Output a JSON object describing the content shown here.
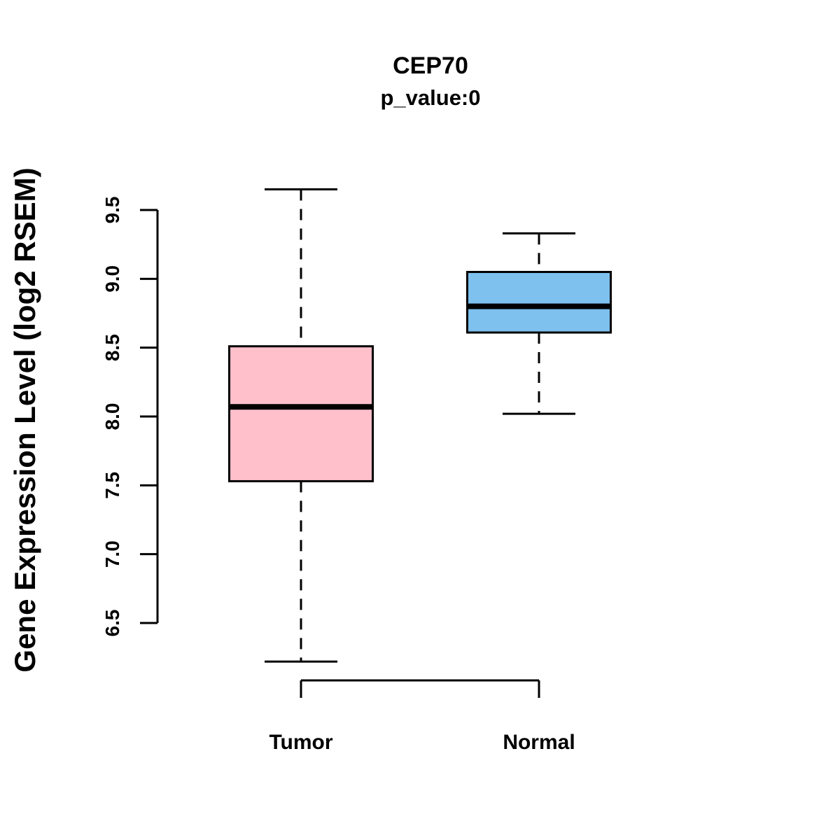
{
  "chart_data": {
    "type": "boxplot",
    "title": "CEP70",
    "subtitle": "p_value:0",
    "ylabel": "Gene Expression Level (log2 RSEM)",
    "ylim": [
      6.5,
      9.5
    ],
    "yticks": [
      6.5,
      7.0,
      7.5,
      8.0,
      8.5,
      9.0,
      9.5
    ],
    "ytick_labels": [
      "6.5",
      "7.0",
      "7.5",
      "8.0",
      "8.5",
      "9.0",
      "9.5"
    ],
    "grid": false,
    "legend": "none",
    "groups": [
      {
        "label": "Tumor",
        "color": "#FFC0CB",
        "whisker_low": 6.22,
        "q1": 7.53,
        "median": 8.07,
        "q3": 8.51,
        "whisker_high": 9.65
      },
      {
        "label": "Normal",
        "color": "#7EC0EE",
        "whisker_low": 8.02,
        "q1": 8.61,
        "median": 8.8,
        "q3": 9.05,
        "whisker_high": 9.33
      }
    ]
  }
}
